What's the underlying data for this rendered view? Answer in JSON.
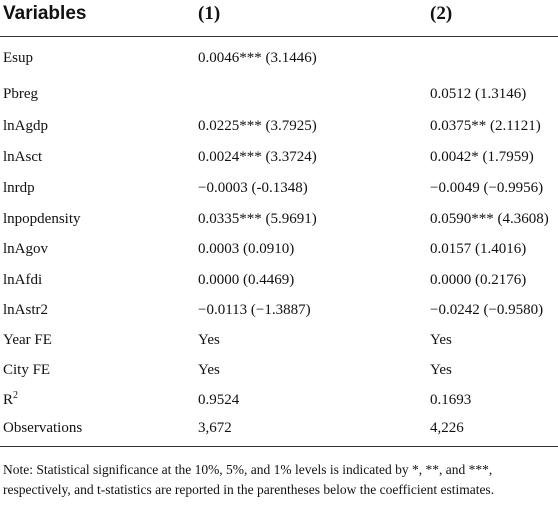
{
  "header": {
    "variables": "Variables",
    "col1": "(1)",
    "col2": "(2)"
  },
  "rows": [
    {
      "name": "Esup",
      "col1": "0.0046*** (3.1446)",
      "col2": ""
    },
    {
      "name": "Pbreg",
      "col1": "",
      "col2": "0.0512 (1.3146)"
    },
    {
      "name": "lnAgdp",
      "col1": "0.0225*** (3.7925)",
      "col2": "0.0375** (2.1121)"
    },
    {
      "name": "lnAsct",
      "col1": "0.0024*** (3.3724)",
      "col2": "0.0042* (1.7959)"
    },
    {
      "name": "lnrdp",
      "col1": "−0.0003 (-0.1348)",
      "col2": "−0.0049 (−0.9956)"
    },
    {
      "name": "lnpopdensity",
      "col1": "0.0335*** (5.9691)",
      "col2": "0.0590*** (4.3608)"
    },
    {
      "name": "lnAgov",
      "col1": "0.0003 (0.0910)",
      "col2": "0.0157 (1.4016)"
    },
    {
      "name": "lnAfdi",
      "col1": "0.0000 (0.4469)",
      "col2": "0.0000 (0.2176)"
    },
    {
      "name": "lnAstr2",
      "col1": "−0.0113 (−1.3887)",
      "col2": "−0.0242 (−0.9580)"
    },
    {
      "name": "Year FE",
      "col1": "Yes",
      "col2": "Yes"
    },
    {
      "name": "City FE",
      "col1": "Yes",
      "col2": "Yes"
    },
    {
      "name_base": "R",
      "name_sup": "2",
      "col1": "0.9524",
      "col2": "0.1693"
    },
    {
      "name": "Observations",
      "col1": "3,672",
      "col2": "4,226"
    }
  ],
  "note": "Note: Statistical significance at the 10%, 5%, and 1% levels is indicated by *, **, and ***, respectively, and t-statistics are reported in the parentheses below the coefficient estimates."
}
